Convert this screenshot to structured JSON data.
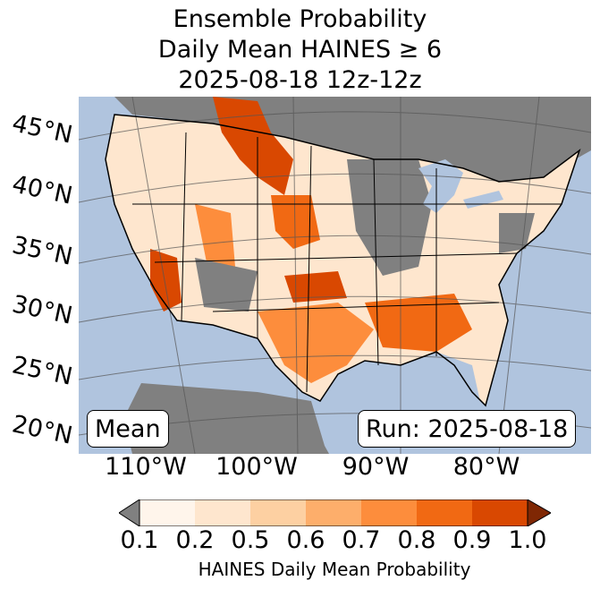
{
  "title": {
    "line1": "Ensemble Probability",
    "line2": "Daily Mean HAINES ≥ 6",
    "line3": "2025-08-18 12z-12z"
  },
  "map": {
    "lat_labels": [
      "45°N",
      "40°N",
      "35°N",
      "30°N",
      "25°N",
      "20°N"
    ],
    "lon_labels": [
      "110°W",
      "100°W",
      "90°W",
      "80°W"
    ],
    "mean_label": "Mean",
    "run_label": "Run: 2025-08-18",
    "colors": {
      "ocean": "#b0c4de",
      "no_data": "#808080",
      "land_default": "#fee6ce"
    }
  },
  "colorbar": {
    "ticks": [
      "0.1",
      "0.2",
      "0.5",
      "0.6",
      "0.7",
      "0.8",
      "0.9",
      "1.0"
    ],
    "colors": [
      "#808080",
      "#fff5eb",
      "#fee6ce",
      "#fdd0a2",
      "#fdae6b",
      "#fd8d3c",
      "#f16913",
      "#d94801",
      "#7f2704"
    ],
    "label": "HAINES Daily Mean Probability"
  }
}
